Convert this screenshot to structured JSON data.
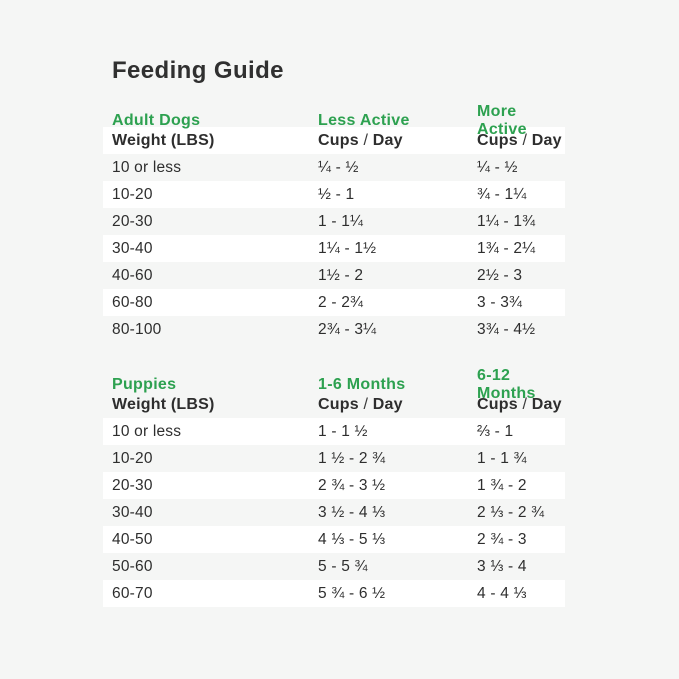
{
  "page": {
    "title": "Feeding Guide"
  },
  "colors": {
    "background": "#f5f6f5",
    "stripe": "#ffffff",
    "accent_green": "#2da150",
    "text": "#2e2e2e"
  },
  "cups_day": {
    "cups": "Cups",
    "slash": "/",
    "day": "Day"
  },
  "adult": {
    "section_label": "Adult Dogs",
    "col2_label": "Less Active",
    "col3_label": "More Active",
    "weight_header": "Weight (LBS)",
    "rows": [
      {
        "weight": "10 or less",
        "less_active": "¼ - ½",
        "more_active": "¼ - ½"
      },
      {
        "weight": "10-20",
        "less_active": "½ - 1",
        "more_active": "¾ - 1¼"
      },
      {
        "weight": "20-30",
        "less_active": "1 - 1¼",
        "more_active": "1¼ - 1¾"
      },
      {
        "weight": "30-40",
        "less_active": "1¼ - 1½",
        "more_active": "1¾ - 2¼"
      },
      {
        "weight": "40-60",
        "less_active": "1½ - 2",
        "more_active": "2½ - 3"
      },
      {
        "weight": "60-80",
        "less_active": "2 - 2¾",
        "more_active": "3 - 3¾"
      },
      {
        "weight": "80-100",
        "less_active": "2¾ - 3¼",
        "more_active": "3¾ - 4½"
      }
    ]
  },
  "puppies": {
    "section_label": "Puppies",
    "col2_label": "1-6 Months",
    "col3_label": "6-12 Months",
    "weight_header": "Weight (LBS)",
    "rows": [
      {
        "weight": "10 or less",
        "months_1_6": "1 - 1 ½",
        "months_6_12": "⅔ - 1"
      },
      {
        "weight": "10-20",
        "months_1_6": "1 ½ - 2 ¾",
        "months_6_12": "1 - 1 ¾"
      },
      {
        "weight": "20-30",
        "months_1_6": "2 ¾ - 3 ½",
        "months_6_12": "1 ¾ - 2"
      },
      {
        "weight": "30-40",
        "months_1_6": "3 ½ - 4 ⅓",
        "months_6_12": "2 ⅓ - 2 ¾"
      },
      {
        "weight": "40-50",
        "months_1_6": "4 ⅓ - 5 ⅓",
        "months_6_12": "2 ¾ - 3"
      },
      {
        "weight": "50-60",
        "months_1_6": "5 - 5 ¾",
        "months_6_12": "3 ⅓ - 4"
      },
      {
        "weight": "60-70",
        "months_1_6": "5 ¾ - 6 ½",
        "months_6_12": "4 - 4 ⅓"
      }
    ]
  }
}
